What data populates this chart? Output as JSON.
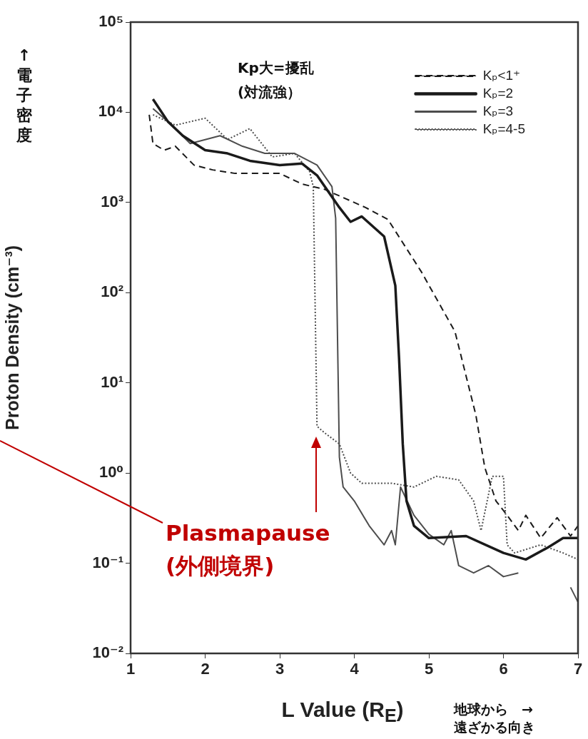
{
  "chart_data": {
    "type": "line",
    "xlabel": "L Value (R$_{E}$)",
    "ylabel": "Proton Density (cm⁻³)",
    "xlim": [
      1,
      7
    ],
    "xticks": [
      1,
      2,
      3,
      4,
      5,
      6,
      7
    ],
    "ylim": [
      0.01,
      100000
    ],
    "yticks": [
      {
        "value": 0.01,
        "label": "10⁻²"
      },
      {
        "value": 0.1,
        "label": "10⁻¹"
      },
      {
        "value": 1,
        "label": "10⁰"
      },
      {
        "value": 10,
        "label": "10¹"
      },
      {
        "value": 100,
        "label": "10²"
      },
      {
        "value": 1000,
        "label": "10³"
      },
      {
        "value": 10000,
        "label": "10⁴"
      },
      {
        "value": 100000,
        "label": "10⁵"
      }
    ],
    "log": true,
    "grid": false,
    "legend": "top right",
    "marker": "none",
    "annotations": [
      "Kp大=擾乱\n(対流強）",
      "Plasmapause\n(外側境界)",
      "↑電子密度",
      "地球から　→\n遠ざかる向き"
    ],
    "series": [
      {
        "name": "Kₚ<1⁺",
        "color": "#1a1a1a",
        "line_style": "dashed",
        "x": [
          1.25,
          1.3,
          1.45,
          1.6,
          1.85,
          2.1,
          2.4,
          2.7,
          3.0,
          3.3,
          3.6,
          4.15,
          4.45,
          4.9,
          5.35,
          5.63,
          5.75,
          5.9,
          6.05,
          6.2,
          6.3,
          6.5,
          6.72,
          6.9,
          7.0
        ],
        "values": [
          9400,
          4500,
          3800,
          4200,
          2600,
          2300,
          2100,
          2100,
          2100,
          1600,
          1400,
          880,
          650,
          170,
          37,
          4.4,
          1.15,
          0.49,
          0.34,
          0.23,
          0.34,
          0.19,
          0.32,
          0.2,
          0.26
        ]
      },
      {
        "name": "Kₚ=2",
        "color": "#1a1a1a",
        "line_style": "solid",
        "x": [
          1.3,
          1.5,
          1.7,
          2.0,
          2.3,
          2.6,
          3.0,
          3.3,
          3.5,
          3.8,
          3.95,
          4.1,
          4.4,
          4.55,
          4.6,
          4.65,
          4.7,
          4.8,
          5.0,
          5.5,
          6.0,
          6.3,
          6.6,
          6.8,
          7.0
        ],
        "values": [
          14000,
          7900,
          5500,
          3800,
          3500,
          2900,
          2600,
          2700,
          2000,
          880,
          610,
          700,
          420,
          120,
          19,
          2.1,
          0.49,
          0.26,
          0.19,
          0.2,
          0.13,
          0.11,
          0.15,
          0.19,
          0.19
        ]
      },
      {
        "name": "Kₚ=3",
        "color": "#4d4d4d",
        "line_style": "solid",
        "x": [
          1.3,
          1.5,
          1.8,
          2.2,
          2.5,
          2.8,
          3.2,
          3.5,
          3.7,
          3.75,
          3.8,
          3.85,
          4.0,
          4.2,
          4.4,
          4.5,
          4.55,
          4.62,
          4.8,
          5.0,
          5.2,
          5.3,
          5.4,
          5.6,
          5.8,
          6.0,
          6.2,
          6.5,
          6.9,
          7.0
        ],
        "values": [
          11000,
          7900,
          4500,
          5500,
          4200,
          3500,
          3500,
          2600,
          1500,
          670,
          1.5,
          0.7,
          0.49,
          0.26,
          0.16,
          0.23,
          0.16,
          0.7,
          0.34,
          0.21,
          0.16,
          0.23,
          0.094,
          0.078,
          0.094,
          0.071,
          0.078,
          null,
          0.054,
          0.037
        ]
      },
      {
        "name": "Kₚ=4-5",
        "color": "#4d4d4d",
        "line_style": "dotted",
        "x": [
          1.3,
          1.6,
          2.0,
          2.3,
          2.6,
          2.9,
          3.2,
          3.4,
          3.45,
          3.5,
          3.6,
          3.8,
          3.95,
          4.1,
          4.5,
          4.8,
          5.1,
          5.4,
          5.6,
          5.7,
          5.85,
          6.0,
          6.05,
          6.15,
          6.5,
          6.8,
          7.0
        ],
        "values": [
          9400,
          7200,
          8600,
          5000,
          6600,
          3200,
          3500,
          2200,
          1500,
          3.3,
          2.8,
          2.1,
          1.0,
          0.77,
          0.77,
          0.7,
          0.92,
          0.84,
          0.49,
          0.23,
          0.92,
          0.92,
          0.16,
          0.13,
          0.16,
          0.13,
          0.11
        ]
      }
    ]
  }
}
